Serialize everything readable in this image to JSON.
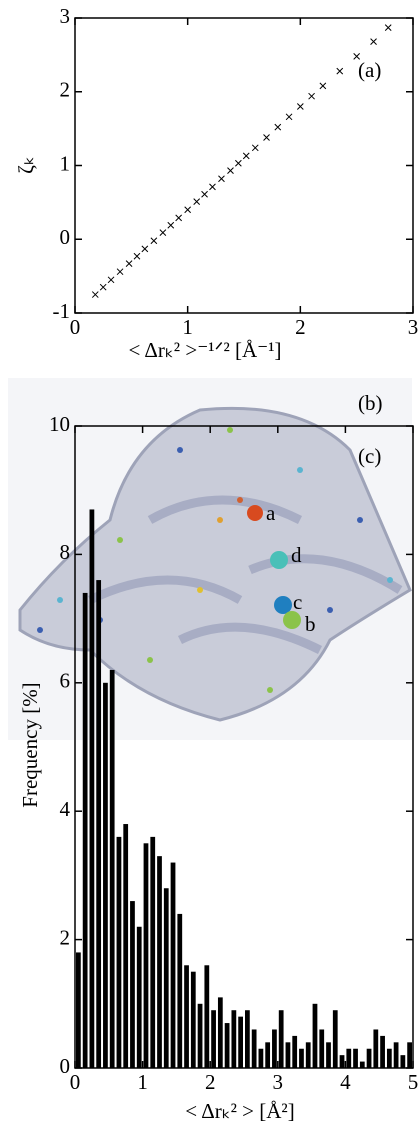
{
  "chart_data": [
    {
      "type": "scatter",
      "label": "(a)",
      "x_label": "< Δrₖ² >⁻¹ᐟ² [Å⁻¹]",
      "y_label": "ζₖ",
      "color": "#000000",
      "x": [
        0.18,
        0.25,
        0.32,
        0.4,
        0.48,
        0.55,
        0.62,
        0.7,
        0.78,
        0.85,
        0.92,
        1.0,
        1.08,
        1.15,
        1.22,
        1.3,
        1.38,
        1.45,
        1.52,
        1.6,
        1.7,
        1.8,
        1.9,
        2.0,
        2.1,
        2.2,
        2.35,
        2.5,
        2.65,
        2.78
      ],
      "values": [
        -0.75,
        -0.65,
        -0.55,
        -0.44,
        -0.33,
        -0.23,
        -0.13,
        -0.02,
        0.09,
        0.19,
        0.29,
        0.4,
        0.51,
        0.61,
        0.71,
        0.82,
        0.93,
        1.03,
        1.13,
        1.24,
        1.38,
        1.52,
        1.66,
        1.8,
        1.94,
        2.08,
        2.28,
        2.48,
        2.68,
        2.87
      ],
      "xlim": [
        0,
        3
      ],
      "xticks": [
        0,
        1,
        2,
        3
      ],
      "ylim": [
        -1,
        3
      ],
      "yticks": [
        -1,
        0,
        1,
        2,
        3
      ]
    },
    {
      "type": "histogram",
      "label": "(c)",
      "x_label": "< Δrₖ² > [Å²]",
      "y_label": "Frequency [%]",
      "color": "#000000",
      "bins": [
        0,
        0.1,
        0.2,
        0.3,
        0.4,
        0.5,
        0.6,
        0.7,
        0.8,
        0.9,
        1.0,
        1.1,
        1.2,
        1.3,
        1.4,
        1.5,
        1.6,
        1.7,
        1.8,
        1.9,
        2.0,
        2.1,
        2.2,
        2.3,
        2.4,
        2.5,
        2.6,
        2.7,
        2.8,
        2.9,
        3.0,
        3.1,
        3.2,
        3.3,
        3.4,
        3.5,
        3.6,
        3.7,
        3.8,
        3.9,
        4.0,
        4.1,
        4.2,
        4.3,
        4.4,
        4.5,
        4.6,
        4.7,
        4.8,
        4.9,
        5.0
      ],
      "values": [
        1.8,
        7.4,
        8.7,
        7.6,
        6.0,
        6.2,
        3.6,
        3.8,
        2.6,
        2.2,
        3.5,
        3.6,
        3.3,
        2.8,
        3.2,
        2.4,
        1.6,
        1.5,
        1.0,
        1.6,
        0.9,
        1.1,
        0.7,
        0.9,
        0.8,
        0.9,
        0.6,
        0.3,
        0.4,
        0.6,
        0.9,
        0.4,
        0.5,
        0.3,
        0.4,
        1.0,
        0.6,
        0.4,
        0.9,
        0.2,
        0.3,
        0.3,
        0.1,
        0.3,
        0.6,
        0.5,
        0.3,
        0.4,
        0.2,
        0.4
      ],
      "xlim": [
        0,
        5
      ],
      "xticks": [
        0,
        1,
        2,
        3,
        4,
        5
      ],
      "ylim": [
        0,
        10
      ],
      "yticks": [
        0,
        2,
        4,
        6,
        8,
        10
      ]
    }
  ],
  "image": {
    "label": "(b)",
    "markers": [
      "a",
      "b",
      "c",
      "d"
    ]
  }
}
